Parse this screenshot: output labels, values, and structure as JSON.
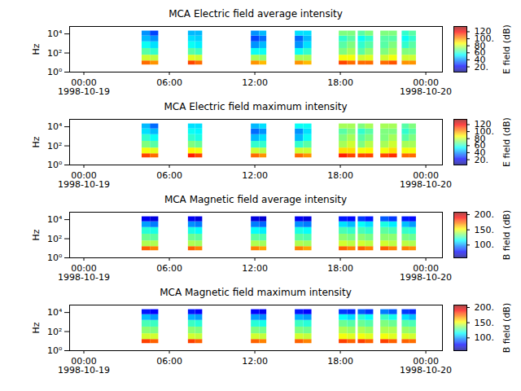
{
  "chart_data": {
    "type": "heatmap",
    "log": "y",
    "ylabel": "Hz",
    "xlim": [
      "1998-10-18T23:00",
      "1998-10-20T01:10"
    ],
    "xticks": [
      {
        "value": "1998-10-19T00:00",
        "label": "00:00\n1998-10-19"
      },
      {
        "value": "1998-10-19T06:00",
        "label": "06:00"
      },
      {
        "value": "1998-10-19T12:00",
        "label": "12:00"
      },
      {
        "value": "1998-10-19T18:00",
        "label": "18:00"
      },
      {
        "value": "1998-10-20T00:00",
        "label": "00:00\n1998-10-20"
      }
    ],
    "ylim": [
      1,
      60000
    ],
    "yticks": [
      {
        "value": 1,
        "label": "10⁰"
      },
      {
        "value": 100,
        "label": "10²"
      },
      {
        "value": 10000,
        "label": "10⁴"
      }
    ],
    "freq_edges": [
      5.6,
      15,
      60,
      300,
      1500,
      6000,
      20000
    ],
    "time_edges": [
      [
        "1998-10-19T04:05",
        "1998-10-19T04:40",
        "1998-10-19T05:15"
      ],
      [
        "1998-10-19T07:20",
        "1998-10-19T07:50",
        "1998-10-19T08:20"
      ],
      [
        "1998-10-19T11:45",
        "1998-10-19T12:20",
        "1998-10-19T12:50"
      ],
      [
        "1998-10-19T14:50",
        "1998-10-19T15:25",
        "1998-10-19T16:00"
      ],
      [
        "1998-10-19T17:55",
        "1998-10-19T18:30",
        "1998-10-19T19:05"
      ],
      [
        "1998-10-19T19:15",
        "1998-10-19T19:45",
        "1998-10-19T20:20"
      ],
      [
        "1998-10-19T20:50",
        "1998-10-19T21:25",
        "1998-10-19T22:00"
      ],
      [
        "1998-10-19T22:20",
        "1998-10-19T22:50",
        "1998-10-19T23:20"
      ]
    ],
    "panels": [
      {
        "title": "MCA  Electric field average intensity",
        "colorbar_label": "E field (dB)",
        "clim": [
          5,
          135
        ],
        "cticks": [
          {
            "value": 20,
            "label": "20."
          },
          40,
          60,
          80,
          {
            "value": 100,
            "label": "100."
          },
          120
        ],
        "cells": [
          [
            [
              105,
              80,
              65,
              55,
              45,
              40
            ],
            [
              100,
              78,
              60,
              50,
              40,
              30
            ]
          ],
          [
            [
              110,
              82,
              65,
              55,
              50,
              45
            ],
            [
              105,
              80,
              62,
              52,
              48,
              45
            ]
          ],
          [
            [
              100,
              75,
              55,
              40,
              30,
              40
            ],
            [
              95,
              72,
              55,
              45,
              35,
              45
            ]
          ],
          [
            [
              100,
              75,
              55,
              40,
              35,
              50
            ],
            [
              95,
              75,
              60,
              50,
              45,
              50
            ]
          ],
          [
            [
              110,
              85,
              70,
              65,
              60,
              70
            ],
            [
              105,
              85,
              75,
              70,
              65,
              70
            ]
          ],
          [
            [
              105,
              80,
              65,
              60,
              55,
              65
            ],
            [
              105,
              82,
              72,
              65,
              60,
              70
            ]
          ],
          [
            [
              105,
              80,
              70,
              65,
              65,
              70
            ],
            [
              108,
              85,
              75,
              70,
              65,
              70
            ]
          ],
          [
            [
              100,
              80,
              70,
              60,
              55,
              60
            ],
            [
              100,
              80,
              70,
              65,
              60,
              65
            ]
          ]
        ]
      },
      {
        "title": "MCA  Electric field maximum intensity",
        "colorbar_label": "E field (dB)",
        "clim": [
          5,
          135
        ],
        "cticks": [
          {
            "value": 20,
            "label": "20."
          },
          40,
          60,
          80,
          {
            "value": 100,
            "label": "100."
          },
          120
        ],
        "cells": [
          [
            [
              110,
              85,
              70,
              60,
              50,
              45
            ],
            [
              105,
              83,
              65,
              55,
              45,
              35
            ]
          ],
          [
            [
              115,
              87,
              70,
              60,
              55,
              50
            ],
            [
              110,
              85,
              67,
              57,
              53,
              50
            ]
          ],
          [
            [
              105,
              80,
              60,
              45,
              35,
              45
            ],
            [
              100,
              77,
              60,
              50,
              40,
              50
            ]
          ],
          [
            [
              105,
              80,
              60,
              45,
              40,
              55
            ],
            [
              100,
              80,
              65,
              55,
              50,
              55
            ]
          ],
          [
            [
              115,
              90,
              75,
              70,
              65,
              75
            ],
            [
              110,
              90,
              80,
              75,
              70,
              75
            ]
          ],
          [
            [
              110,
              85,
              70,
              65,
              60,
              70
            ],
            [
              110,
              87,
              77,
              70,
              65,
              75
            ]
          ],
          [
            [
              110,
              85,
              75,
              70,
              70,
              75
            ],
            [
              113,
              90,
              80,
              75,
              70,
              75
            ]
          ],
          [
            [
              105,
              85,
              75,
              65,
              60,
              65
            ],
            [
              105,
              85,
              75,
              70,
              65,
              70
            ]
          ]
        ]
      },
      {
        "title": "MCA  Magnetic field average intensity",
        "colorbar_label": "B field (dB)",
        "clim": [
          58,
          208
        ],
        "cticks": [
          {
            "value": 100,
            "label": "100."
          },
          {
            "value": 150,
            "label": "150."
          },
          {
            "value": 200,
            "label": "200."
          }
        ],
        "cells": [
          [
            [
              175,
              140,
              130,
              120,
              100,
              75
            ],
            [
              170,
              140,
              128,
              118,
              95,
              72
            ]
          ],
          [
            [
              175,
              140,
              130,
              118,
              98,
              75
            ],
            [
              170,
              138,
              128,
              115,
              95,
              72
            ]
          ],
          [
            [
              170,
              140,
              128,
              115,
              95,
              72
            ],
            [
              165,
              138,
              126,
              112,
              92,
              70
            ]
          ],
          [
            [
              170,
              140,
              128,
              118,
              98,
              75
            ],
            [
              165,
              138,
              126,
              115,
              95,
              72
            ]
          ],
          [
            [
              175,
              145,
              135,
              125,
              110,
              80
            ],
            [
              170,
              142,
              132,
              122,
              105,
              78
            ]
          ],
          [
            [
              175,
              145,
              135,
              125,
              115,
              85
            ],
            [
              170,
              142,
              132,
              122,
              110,
              80
            ]
          ],
          [
            [
              175,
              145,
              135,
              128,
              118,
              90
            ],
            [
              170,
              142,
              135,
              125,
              112,
              85
            ]
          ],
          [
            [
              170,
              142,
              132,
              122,
              105,
              80
            ],
            [
              168,
              140,
              130,
              120,
              100,
              78
            ]
          ]
        ]
      },
      {
        "title": "MCA  Magnetic field maximum intensity",
        "colorbar_label": "B field (dB)",
        "clim": [
          58,
          208
        ],
        "cticks": [
          {
            "value": 100,
            "label": "100."
          },
          {
            "value": 150,
            "label": "150."
          },
          {
            "value": 200,
            "label": "200."
          }
        ],
        "cells": [
          [
            [
              180,
              145,
              135,
              125,
              105,
              80
            ],
            [
              175,
              145,
              133,
              123,
              100,
              77
            ]
          ],
          [
            [
              180,
              145,
              135,
              123,
              103,
              80
            ],
            [
              175,
              143,
              133,
              120,
              100,
              77
            ]
          ],
          [
            [
              175,
              145,
              133,
              120,
              100,
              77
            ],
            [
              170,
              143,
              131,
              117,
              97,
              75
            ]
          ],
          [
            [
              175,
              145,
              133,
              123,
              103,
              80
            ],
            [
              170,
              143,
              131,
              120,
              100,
              77
            ]
          ],
          [
            [
              180,
              150,
              140,
              130,
              115,
              85
            ],
            [
              175,
              147,
              137,
              127,
              110,
              83
            ]
          ],
          [
            [
              180,
              150,
              140,
              130,
              120,
              90
            ],
            [
              175,
              147,
              137,
              127,
              115,
              85
            ]
          ],
          [
            [
              180,
              150,
              140,
              133,
              123,
              95
            ],
            [
              175,
              147,
              140,
              130,
              117,
              90
            ]
          ],
          [
            [
              175,
              147,
              137,
              127,
              110,
              85
            ],
            [
              173,
              145,
              135,
              125,
              105,
              83
            ]
          ]
        ]
      }
    ]
  }
}
